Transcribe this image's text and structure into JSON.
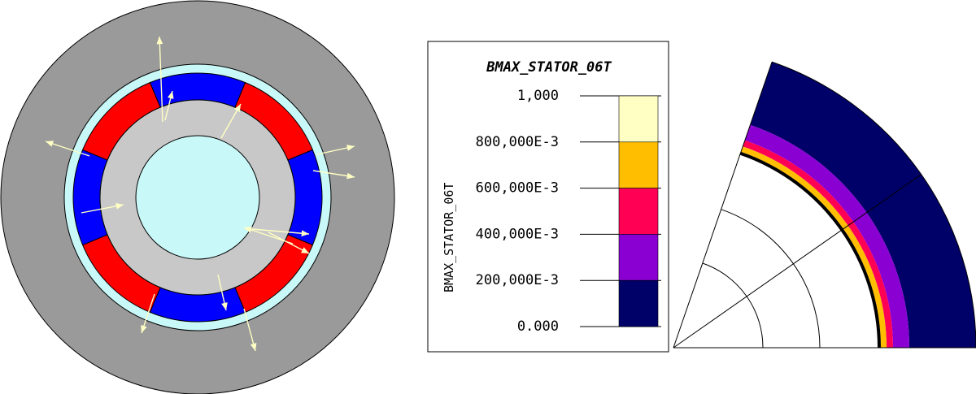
{
  "legend": {
    "title": "BMAX_STATOR_06T",
    "axis_label": "BMAX_STATOR_06T",
    "ticks": [
      "1,000",
      "800,000E-3",
      "600,000E-3",
      "400,000E-3",
      "200,000E-3",
      "0.000"
    ],
    "bands": [
      {
        "from": "800,000E-3",
        "to": "1,000",
        "color": "#ffffc4"
      },
      {
        "from": "600,000E-3",
        "to": "800,000E-3",
        "color": "#ffbe00"
      },
      {
        "from": "400,000E-3",
        "to": "600,000E-3",
        "color": "#ff0055"
      },
      {
        "from": "200,000E-3",
        "to": "400,000E-3",
        "color": "#8a00d2"
      },
      {
        "from": "0.000",
        "to": "200,000E-3",
        "color": "#000069"
      }
    ]
  },
  "colors": {
    "stator": "#9a9a9a",
    "air_gap": "#c8f8f8",
    "magnet_north": "#ff0000",
    "magnet_south": "#0000ff",
    "rotor_yoke": "#c8c8c8",
    "shaft": "#c8f8f8",
    "arrow": "#ffffc4"
  }
}
